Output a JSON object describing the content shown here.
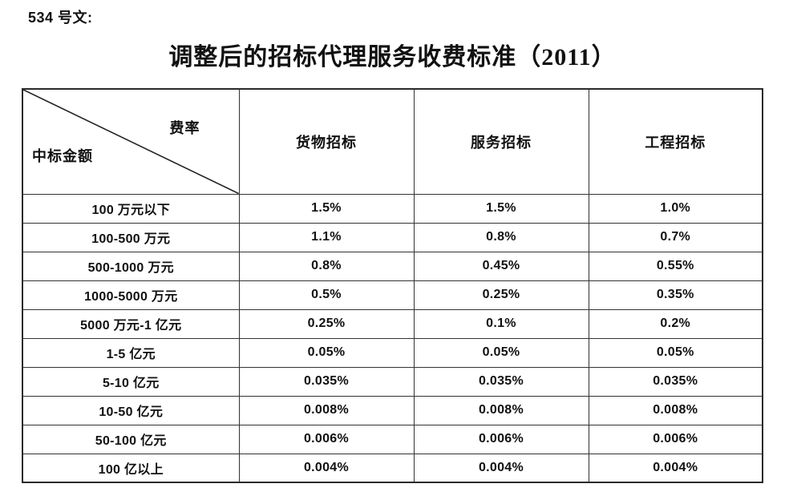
{
  "document": {
    "ref_label": "534 号文:",
    "title": "调整后的招标代理服务收费标准（2011）"
  },
  "table": {
    "corner": {
      "top_right_label": "费率",
      "bottom_left_label": "中标金额"
    },
    "columns": [
      "货物招标",
      "服务招标",
      "工程招标"
    ],
    "rows": [
      {
        "amount": "100 万元以下",
        "rates": [
          "1.5%",
          "1.5%",
          "1.0%"
        ]
      },
      {
        "amount": "100-500 万元",
        "rates": [
          "1.1%",
          "0.8%",
          "0.7%"
        ]
      },
      {
        "amount": "500-1000 万元",
        "rates": [
          "0.8%",
          "0.45%",
          "0.55%"
        ]
      },
      {
        "amount": "1000-5000 万元",
        "rates": [
          "0.5%",
          "0.25%",
          "0.35%"
        ]
      },
      {
        "amount": "5000 万元-1 亿元",
        "rates": [
          "0.25%",
          "0.1%",
          "0.2%"
        ]
      },
      {
        "amount": "1-5 亿元",
        "rates": [
          "0.05%",
          "0.05%",
          "0.05%"
        ]
      },
      {
        "amount": "5-10 亿元",
        "rates": [
          "0.035%",
          "0.035%",
          "0.035%"
        ]
      },
      {
        "amount": "10-50 亿元",
        "rates": [
          "0.008%",
          "0.008%",
          "0.008%"
        ]
      },
      {
        "amount": "50-100 亿元",
        "rates": [
          "0.006%",
          "0.006%",
          "0.006%"
        ]
      },
      {
        "amount": "100 亿以上",
        "rates": [
          "0.004%",
          "0.004%",
          "0.004%"
        ]
      }
    ]
  },
  "colors": {
    "background": "#ffffff",
    "text": "#111111",
    "border": "#333333"
  }
}
